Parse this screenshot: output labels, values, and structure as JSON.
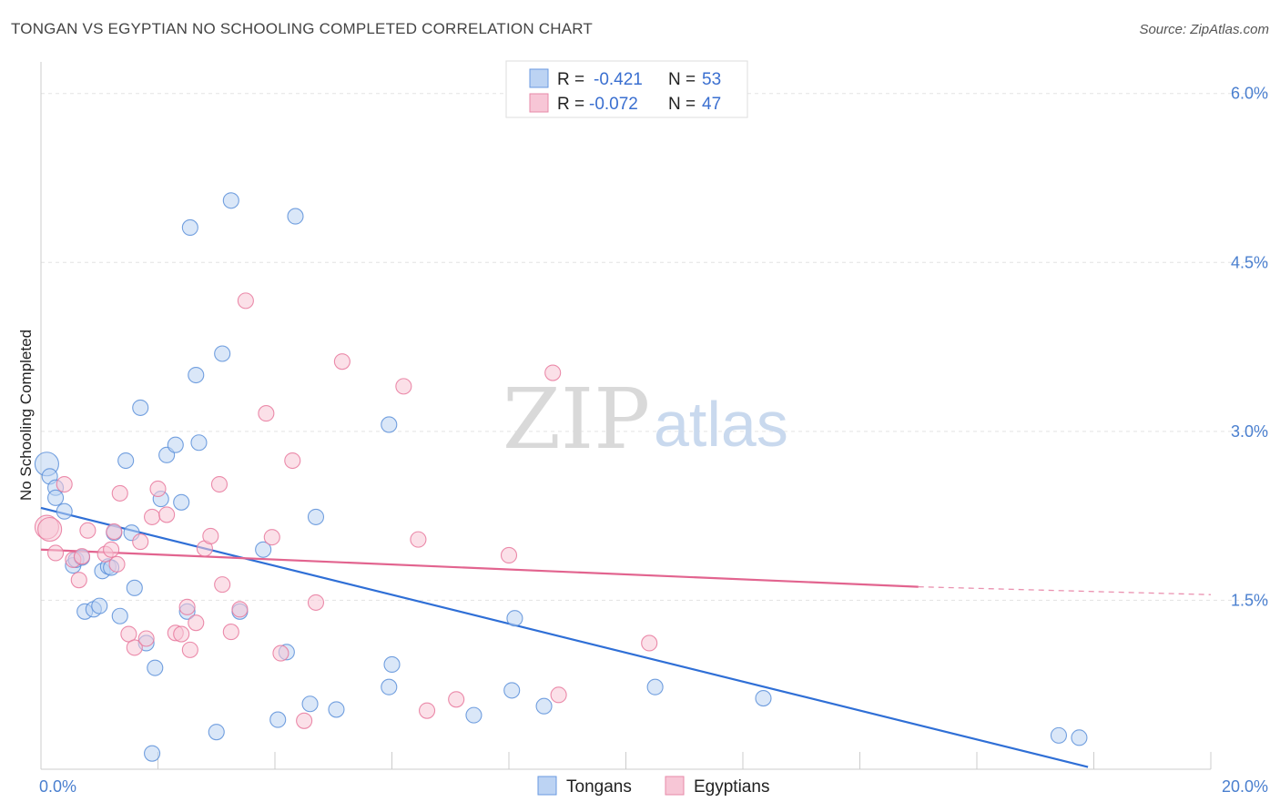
{
  "header": {
    "title": "TONGAN VS EGYPTIAN NO SCHOOLING COMPLETED CORRELATION CHART",
    "source": "Source: ZipAtlas.com"
  },
  "watermark": {
    "zip": "ZIP",
    "atlas": "atlas"
  },
  "legend": {
    "rows": [
      {
        "r_label": "R =",
        "r_value": "-0.421",
        "n_label": "N =",
        "n_value": "53",
        "color": "#a8c6f0"
      },
      {
        "r_label": "R =",
        "r_value": "-0.072",
        "n_label": "N =",
        "n_value": "47",
        "color": "#f5b3c8"
      }
    ]
  },
  "bottom_legend": [
    "Tongans",
    "Egyptians"
  ],
  "chart_data": {
    "type": "scatter",
    "xlabel": "",
    "ylabel": "No Schooling Completed",
    "xlim": [
      0,
      20
    ],
    "ylim": [
      0,
      6.2
    ],
    "x_tick_labels": [
      {
        "value": 0,
        "label": "0.0%"
      },
      {
        "value": 20,
        "label": "20.0%"
      }
    ],
    "y_tick_labels": [
      {
        "value": 1.5,
        "label": "1.5%"
      },
      {
        "value": 3.0,
        "label": "3.0%"
      },
      {
        "value": 4.5,
        "label": "4.5%"
      },
      {
        "value": 6.0,
        "label": "6.0%"
      }
    ],
    "colors": {
      "tongans": "#5b8fd9",
      "tongans_fill": "#bcd3f3",
      "egyptians": "#e7789c",
      "egyptians_fill": "#f7c6d6"
    },
    "series": [
      {
        "name": "Tongans",
        "points": [
          [
            0.1,
            2.71
          ],
          [
            0.15,
            2.6
          ],
          [
            0.25,
            2.5
          ],
          [
            0.25,
            2.41
          ],
          [
            0.4,
            2.29
          ],
          [
            0.55,
            1.81
          ],
          [
            0.6,
            1.86
          ],
          [
            0.7,
            1.88
          ],
          [
            0.75,
            1.4
          ],
          [
            0.9,
            1.42
          ],
          [
            1.0,
            1.45
          ],
          [
            1.05,
            1.76
          ],
          [
            1.15,
            1.8
          ],
          [
            1.2,
            1.79
          ],
          [
            1.25,
            2.1
          ],
          [
            1.35,
            1.36
          ],
          [
            1.45,
            2.74
          ],
          [
            1.55,
            2.1
          ],
          [
            1.6,
            1.61
          ],
          [
            1.7,
            3.21
          ],
          [
            1.8,
            1.12
          ],
          [
            1.9,
            0.14
          ],
          [
            1.95,
            0.9
          ],
          [
            2.05,
            2.4
          ],
          [
            2.15,
            2.79
          ],
          [
            2.3,
            2.88
          ],
          [
            2.4,
            2.37
          ],
          [
            2.5,
            1.4
          ],
          [
            2.55,
            4.81
          ],
          [
            2.65,
            3.5
          ],
          [
            2.7,
            2.9
          ],
          [
            3.0,
            0.33
          ],
          [
            3.1,
            3.69
          ],
          [
            3.25,
            5.05
          ],
          [
            3.4,
            1.4
          ],
          [
            3.8,
            1.95
          ],
          [
            4.05,
            0.44
          ],
          [
            4.2,
            1.04
          ],
          [
            4.35,
            4.91
          ],
          [
            4.6,
            0.58
          ],
          [
            4.7,
            2.24
          ],
          [
            5.05,
            0.53
          ],
          [
            5.95,
            3.06
          ],
          [
            5.95,
            0.73
          ],
          [
            6.0,
            0.93
          ],
          [
            7.4,
            0.48
          ],
          [
            8.05,
            0.7
          ],
          [
            8.1,
            1.34
          ],
          [
            8.6,
            0.56
          ],
          [
            10.5,
            0.73
          ],
          [
            12.35,
            0.63
          ],
          [
            17.4,
            0.3
          ],
          [
            17.75,
            0.28
          ]
        ]
      },
      {
        "name": "Egyptians",
        "points": [
          [
            0.1,
            2.15
          ],
          [
            0.15,
            2.13
          ],
          [
            0.25,
            1.92
          ],
          [
            0.4,
            2.53
          ],
          [
            0.55,
            1.86
          ],
          [
            0.65,
            1.68
          ],
          [
            0.7,
            1.89
          ],
          [
            0.8,
            2.12
          ],
          [
            1.1,
            1.91
          ],
          [
            1.2,
            1.95
          ],
          [
            1.25,
            2.11
          ],
          [
            1.3,
            1.82
          ],
          [
            1.35,
            2.45
          ],
          [
            1.5,
            1.2
          ],
          [
            1.6,
            1.08
          ],
          [
            1.7,
            2.02
          ],
          [
            1.8,
            1.16
          ],
          [
            1.9,
            2.24
          ],
          [
            2.0,
            2.49
          ],
          [
            2.15,
            2.26
          ],
          [
            2.3,
            1.21
          ],
          [
            2.4,
            1.2
          ],
          [
            2.5,
            1.44
          ],
          [
            2.55,
            1.06
          ],
          [
            2.65,
            1.3
          ],
          [
            2.8,
            1.96
          ],
          [
            2.9,
            2.07
          ],
          [
            3.05,
            2.53
          ],
          [
            3.1,
            1.64
          ],
          [
            3.25,
            1.22
          ],
          [
            3.4,
            1.42
          ],
          [
            3.5,
            4.16
          ],
          [
            3.85,
            3.16
          ],
          [
            3.95,
            2.06
          ],
          [
            4.1,
            1.03
          ],
          [
            4.3,
            2.74
          ],
          [
            4.5,
            0.43
          ],
          [
            4.7,
            1.48
          ],
          [
            5.15,
            3.62
          ],
          [
            6.2,
            3.4
          ],
          [
            6.45,
            2.04
          ],
          [
            6.6,
            0.52
          ],
          [
            7.1,
            0.62
          ],
          [
            8.0,
            1.9
          ],
          [
            8.75,
            3.52
          ],
          [
            8.85,
            0.66
          ],
          [
            10.4,
            1.12
          ]
        ]
      }
    ],
    "trendlines": [
      {
        "name": "Tongans",
        "x": [
          0,
          17.9
        ],
        "y": [
          2.32,
          0.02
        ]
      },
      {
        "name": "Egyptians",
        "x": [
          0,
          15.0
        ],
        "y": [
          1.95,
          1.62
        ],
        "dashed_to": [
          20,
          1.55
        ]
      }
    ]
  }
}
